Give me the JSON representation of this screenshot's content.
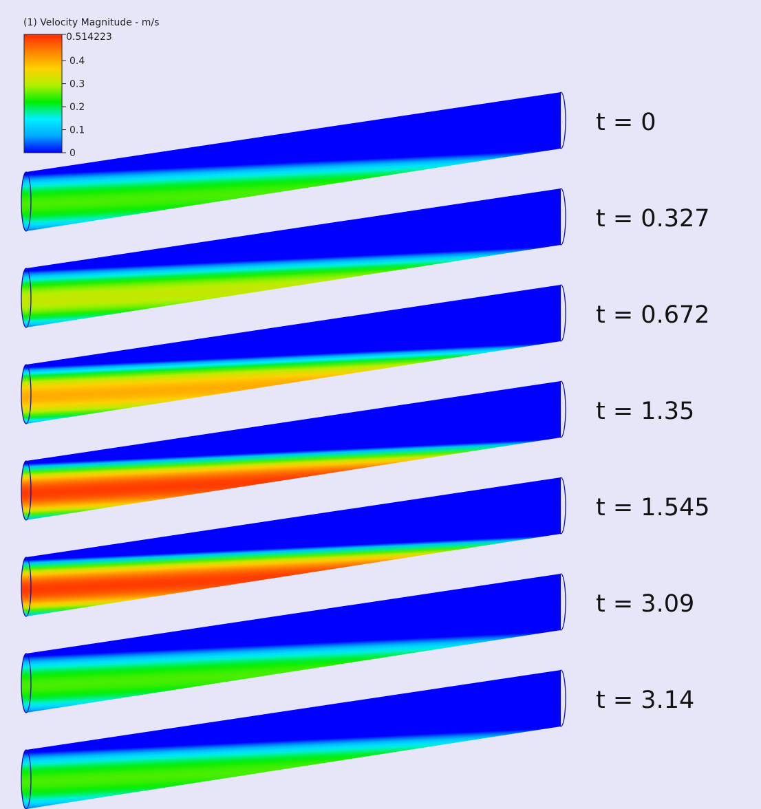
{
  "legend": {
    "title": "(1) Velocity Magnitude - m/s",
    "max_label": "0.514223",
    "min": 0,
    "max": 0.514223,
    "ticks": [
      {
        "value": 0.4,
        "label": "0.4"
      },
      {
        "value": 0.3,
        "label": "0.3"
      },
      {
        "value": 0.2,
        "label": "0.2"
      },
      {
        "value": 0.1,
        "label": "0.1"
      },
      {
        "value": 0,
        "label": "0"
      }
    ],
    "colormap": [
      "#0000ff",
      "#00aaff",
      "#00f0ff",
      "#00ee00",
      "#b4ef00",
      "#ffd000",
      "#ff8000",
      "#ff2a00"
    ]
  },
  "pipes": [
    {
      "time_label": "t = 0",
      "center_velocity": 0.25
    },
    {
      "time_label": "t = 0.327",
      "center_velocity": 0.31
    },
    {
      "time_label": "t = 0.672",
      "center_velocity": 0.4
    },
    {
      "time_label": "t = 1.35",
      "center_velocity": 0.5
    },
    {
      "time_label": "t = 1.545",
      "center_velocity": 0.5
    },
    {
      "time_label": "t = 3.09",
      "center_velocity": 0.25
    },
    {
      "time_label": "t = 3.14",
      "center_velocity": 0.25
    }
  ],
  "colors": {
    "background": "#e6e6f8",
    "pipe_outline": "#1010aa"
  }
}
